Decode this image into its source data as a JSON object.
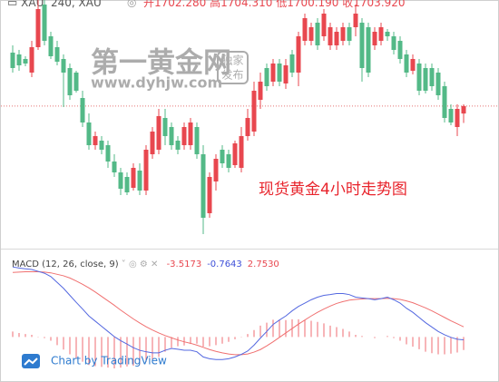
{
  "chart_data": {
    "type": "candlestick",
    "header": {
      "symbol": "XAU, 240, XAU",
      "ohlc": [
        "开1702.280",
        "高1704.310",
        "低1700.190",
        "收1703.920"
      ]
    },
    "watermark": {
      "title": "第一黄金网",
      "url": "www.dyhjw.com",
      "badge": [
        "独家",
        "发布"
      ]
    },
    "annotation": "现货黄金4小时走势图",
    "up_color": "#e8474f",
    "down_color": "#53b987",
    "ylim": [
      1672.3,
      1727.3
    ],
    "price_line": 1703.92,
    "price_line_color": "#e57373",
    "open": [
      1715.7,
      1715.3,
      1714.3,
      1711.3,
      1716.9,
      1726.3,
      1719.3,
      1716.9,
      1714.3,
      1712.3,
      1711.3,
      1705.7,
      1700.3,
      1695.3,
      1696.3,
      1695.3,
      1691.7,
      1689.3,
      1688.3,
      1685.9,
      1689.7,
      1685.3,
      1693.3,
      1694.3,
      1701.3,
      1699.3,
      1696.3,
      1695.3,
      1695.3,
      1699.3,
      1693.3,
      1680.3,
      1687.3,
      1694.3,
      1693.3,
      1690.9,
      1690.3,
      1697.3,
      1698.3,
      1705.3,
      1712.3,
      1709.3,
      1713.3,
      1708.9,
      1715.3,
      1711.3,
      1718.3,
      1718.3,
      1722.3,
      1719.3,
      1717.3,
      1717.3,
      1718.3,
      1721.3,
      1721.3,
      1722.3,
      1721.3,
      1717.3,
      1718.3,
      1720.3,
      1719.3,
      1718.3,
      1715.3,
      1711.7,
      1713.3,
      1712.3,
      1712.3,
      1711.3,
      1708.3,
      1703.3,
      1699.3,
      1702.28
    ],
    "high": [
      1717.3,
      1716.3,
      1714.9,
      1718.3,
      1727.3,
      1727.3,
      1720.3,
      1718.3,
      1715.3,
      1713.3,
      1711.7,
      1707.3,
      1702.3,
      1698.3,
      1697.3,
      1696.3,
      1693.3,
      1690.3,
      1689.3,
      1691.3,
      1691.3,
      1695.3,
      1699.3,
      1703.3,
      1703.3,
      1700.3,
      1697.3,
      1700.3,
      1701.3,
      1700.3,
      1695.3,
      1689.3,
      1693.3,
      1695.3,
      1694.3,
      1696.3,
      1699.3,
      1703.3,
      1709.3,
      1711.3,
      1713.3,
      1714.3,
      1714.3,
      1714.3,
      1716.3,
      1720.3,
      1724.3,
      1722.3,
      1723.3,
      1725.3,
      1722.3,
      1721.3,
      1722.3,
      1722.3,
      1726.3,
      1723.3,
      1722.3,
      1721.3,
      1722.3,
      1720.9,
      1720.3,
      1719.3,
      1716.3,
      1715.3,
      1714.3,
      1713.3,
      1713.3,
      1712.3,
      1709.3,
      1704.3,
      1704.3,
      1704.31
    ],
    "low": [
      1711.3,
      1711.7,
      1712.7,
      1710.3,
      1716.3,
      1717.3,
      1714.3,
      1712.9,
      1703.7,
      1705.3,
      1706.9,
      1699.3,
      1694.3,
      1694.3,
      1693.3,
      1690.3,
      1688.3,
      1684.3,
      1684.3,
      1685.3,
      1684.3,
      1684.3,
      1692.3,
      1693.3,
      1695.3,
      1694.3,
      1693.3,
      1694.3,
      1694.3,
      1692.3,
      1675.7,
      1679.3,
      1685.3,
      1690.3,
      1689.3,
      1690.3,
      1689.3,
      1696.3,
      1697.3,
      1703.3,
      1707.3,
      1708.3,
      1708.3,
      1707.7,
      1710.3,
      1708.3,
      1717.3,
      1717.3,
      1716.3,
      1718.3,
      1716.3,
      1716.3,
      1717.3,
      1717.3,
      1719.3,
      1709.3,
      1710.3,
      1716.3,
      1717.3,
      1718.3,
      1715.3,
      1713.3,
      1710.3,
      1710.9,
      1706.3,
      1706.7,
      1707.3,
      1705.3,
      1700.3,
      1699.7,
      1697.3,
      1700.19
    ],
    "close": [
      1712.3,
      1712.9,
      1713.3,
      1716.9,
      1725.3,
      1718.3,
      1714.9,
      1713.7,
      1711.3,
      1706.3,
      1707.3,
      1700.3,
      1695.3,
      1697.3,
      1694.3,
      1691.7,
      1689.3,
      1685.7,
      1684.9,
      1690.3,
      1685.3,
      1694.3,
      1698.3,
      1701.7,
      1697.3,
      1695.3,
      1694.3,
      1699.3,
      1700.3,
      1693.3,
      1679.3,
      1688.3,
      1692.3,
      1691.3,
      1690.3,
      1695.7,
      1697.3,
      1701.3,
      1707.3,
      1709.3,
      1708.3,
      1713.3,
      1709.3,
      1712.9,
      1711.3,
      1719.3,
      1723.3,
      1721.3,
      1717.3,
      1724.3,
      1721.3,
      1720.3,
      1721.3,
      1718.3,
      1724.3,
      1712.3,
      1711.3,
      1720.3,
      1721.3,
      1719.3,
      1716.3,
      1714.3,
      1711.3,
      1714.3,
      1707.3,
      1707.3,
      1708.3,
      1706.3,
      1701.3,
      1700.3,
      1703.3,
      1703.92
    ],
    "macd": {
      "type": "macd",
      "label": "MACD (12, 26, close, 9)",
      "legend_values": [
        "-3.5173",
        "-0.7643",
        "2.7530"
      ],
      "legend_colors": [
        "#e8474f",
        "#3d4fd8",
        "#e8474f"
      ],
      "ylim": [
        -9,
        22
      ],
      "histogram_color": "#ef6b72",
      "macd_color": "#5468e0",
      "signal_color": "#f07070",
      "histogram": [
        1.5,
        1.1,
        0.8,
        0.6,
        0.1,
        -0.3,
        -1.0,
        -2.2,
        -3.4,
        -4.7,
        -5.8,
        -6.7,
        -7.6,
        -7.9,
        -8.1,
        -8.3,
        -8.5,
        -8.3,
        -8.0,
        -7.8,
        -7.4,
        -6.8,
        -6.2,
        -5.4,
        -4.0,
        -2.9,
        -2.5,
        -2.3,
        -1.9,
        -1.8,
        -2.6,
        -2.5,
        -2.2,
        -1.8,
        -1.3,
        -0.6,
        0.1,
        0.8,
        1.9,
        3.1,
        3.9,
        4.7,
        4.7,
        4.6,
        4.8,
        4.8,
        4.6,
        4.4,
        4.1,
        3.7,
        3.1,
        2.7,
        2.2,
        1.5,
        0.6,
        0.3,
        0.0,
        -0.3,
        0.0,
        0.3,
        -0.3,
        -1.0,
        -2.0,
        -2.6,
        -3.3,
        -4.0,
        -4.4,
        -4.7,
        -4.7,
        -4.5,
        -4.2,
        -3.5173
      ],
      "macd": [
        19.0,
        18.7,
        18.5,
        18.3,
        17.8,
        17.3,
        16.4,
        14.8,
        13.2,
        11.3,
        9.4,
        7.6,
        5.7,
        4.3,
        2.9,
        1.5,
        0.1,
        -1.0,
        -1.9,
        -2.9,
        -3.6,
        -4.0,
        -4.3,
        -4.3,
        -3.6,
        -3.1,
        -3.3,
        -3.6,
        -3.6,
        -4.0,
        -5.4,
        -5.9,
        -6.1,
        -6.1,
        -5.9,
        -5.4,
        -4.7,
        -3.8,
        -2.2,
        -0.3,
        1.5,
        3.4,
        4.6,
        5.7,
        7.1,
        8.3,
        9.2,
        10.1,
        10.8,
        11.3,
        11.5,
        11.8,
        11.8,
        11.5,
        10.8,
        10.6,
        10.4,
        10.1,
        10.4,
        10.8,
        10.1,
        9.2,
        7.8,
        6.7,
        5.3,
        3.9,
        2.7,
        1.5,
        0.6,
        -0.1,
        -0.6,
        -0.7643
      ],
      "signal": [
        17.5,
        17.6,
        17.7,
        17.7,
        17.7,
        17.6,
        17.4,
        17.0,
        16.6,
        16.0,
        15.2,
        14.3,
        13.3,
        12.2,
        11.0,
        9.8,
        8.6,
        7.3,
        6.1,
        4.9,
        3.8,
        2.8,
        1.9,
        1.1,
        0.4,
        -0.2,
        -0.8,
        -1.3,
        -1.7,
        -2.2,
        -2.8,
        -3.4,
        -3.9,
        -4.3,
        -4.6,
        -4.8,
        -4.8,
        -4.6,
        -4.1,
        -3.4,
        -2.4,
        -1.3,
        -0.1,
        1.1,
        2.3,
        3.5,
        4.6,
        5.7,
        6.7,
        7.6,
        8.4,
        9.1,
        9.6,
        10.0,
        10.2,
        10.3,
        10.4,
        10.4,
        10.4,
        10.5,
        10.4,
        10.2,
        9.8,
        9.3,
        8.6,
        7.9,
        7.1,
        6.2,
        5.3,
        4.4,
        3.6,
        2.753
      ]
    },
    "credit": "Chart by TradingView"
  }
}
